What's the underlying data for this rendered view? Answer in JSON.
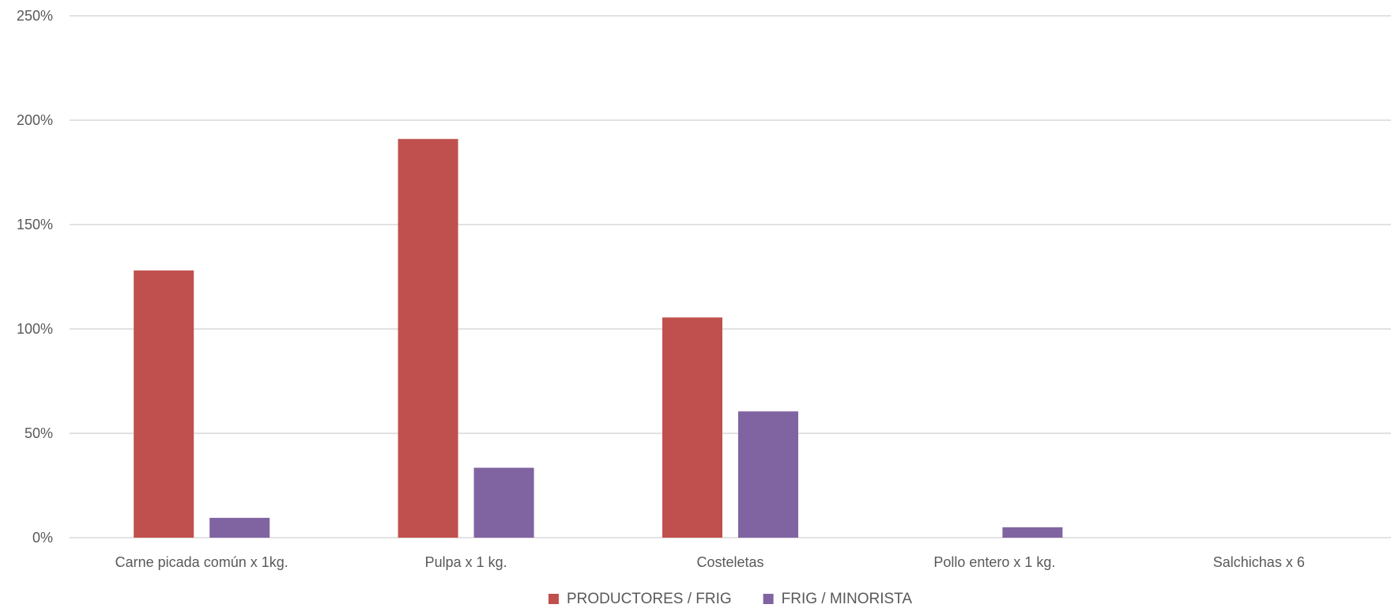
{
  "chart_data": {
    "type": "bar",
    "categories": [
      "Carne picada común x 1kg.",
      "Pulpa x 1 kg.",
      "Costeletas",
      "Pollo entero x 1 kg.",
      "Salchichas x 6"
    ],
    "series": [
      {
        "name": "PRODUCTORES / FRIG",
        "color": "#c0504d",
        "values": [
          1.28,
          1.91,
          1.055,
          0,
          0
        ]
      },
      {
        "name": "FRIG / MINORISTA",
        "color": "#8064a2",
        "values": [
          0.095,
          0.335,
          0.605,
          0.05,
          0
        ]
      }
    ],
    "ylim": [
      0,
      2.5
    ],
    "yticks": [
      0,
      0.5,
      1,
      1.5,
      2,
      2.5
    ],
    "ytick_labels": [
      "0%",
      "50%",
      "100%",
      "150%",
      "200%",
      "250%"
    ],
    "y_format": "percent",
    "grid": true,
    "legend_position": "bottom",
    "title": "",
    "xlabel": "",
    "ylabel": ""
  }
}
